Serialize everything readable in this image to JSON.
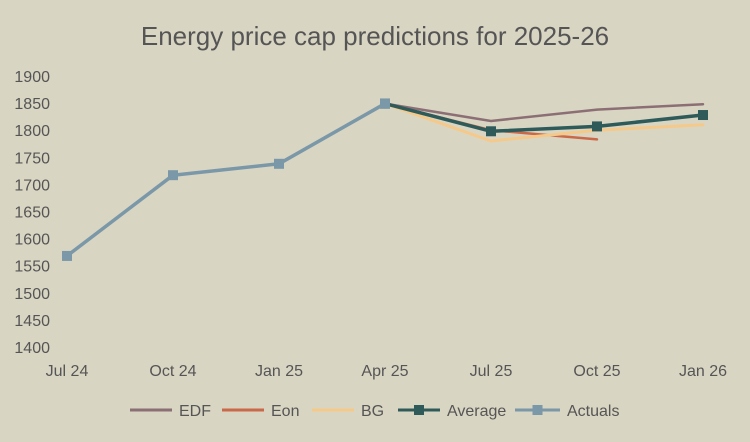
{
  "chart_data": {
    "type": "line",
    "title": "Energy price cap predictions for 2025-26",
    "xlabel": "",
    "ylabel": "",
    "categories": [
      "Jul 24",
      "Oct 24",
      "Jan 25",
      "Apr 25",
      "Jul 25",
      "Oct 25",
      "Jan 26"
    ],
    "ylim": [
      1400,
      1900
    ],
    "yticks": [
      1400,
      1450,
      1500,
      1550,
      1600,
      1650,
      1700,
      1750,
      1800,
      1850,
      1900
    ],
    "grid": false,
    "legend_position": "bottom",
    "series": [
      {
        "name": "EDF",
        "color": "#8c6f74",
        "marker": "none",
        "values": [
          null,
          null,
          null,
          1849,
          1817,
          1838,
          1848
        ]
      },
      {
        "name": "Eon",
        "color": "#c9694a",
        "marker": "none",
        "values": [
          null,
          null,
          null,
          1849,
          1800,
          1783,
          null
        ]
      },
      {
        "name": "BG",
        "color": "#f5c98a",
        "marker": "none",
        "values": [
          null,
          null,
          null,
          1849,
          1780,
          1800,
          1810
        ]
      },
      {
        "name": "Average",
        "color": "#2e5b5a",
        "marker": "square",
        "values": [
          null,
          null,
          null,
          1849,
          1798,
          1807,
          1828
        ]
      },
      {
        "name": "Actuals",
        "color": "#7b98a8",
        "marker": "square",
        "values": [
          1568,
          1717,
          1738,
          1849,
          null,
          null,
          null
        ]
      }
    ]
  }
}
